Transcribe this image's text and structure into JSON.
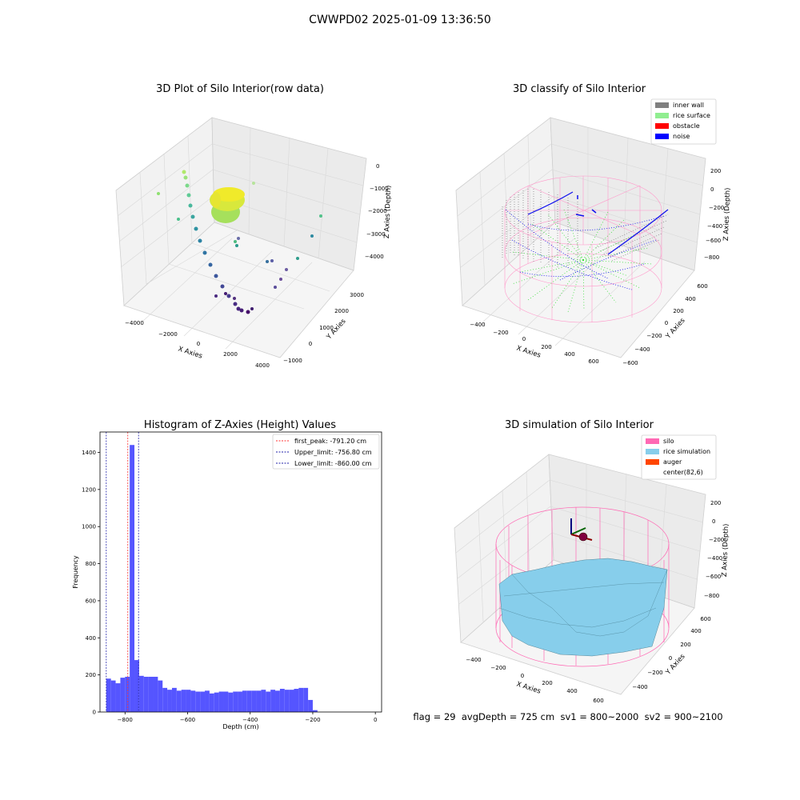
{
  "suptitle": "CWWPD02 2025-01-09 13:36:50",
  "footer_text": "flag = 29  avgDepth = 725 cm  sv1 = 800~2000  sv2 = 900~2100",
  "colors": {
    "hist_bar": "#5555ff",
    "first_peak": "#ff3333",
    "limit": "#2222aa",
    "inner_wall": "#808080",
    "rice_surface": "#90ee90",
    "obstacle": "#ff0000",
    "noise": "#0000ff",
    "silo": "#ff69b4",
    "rice_simulation": "#87ceeb",
    "auger": "#ff4500"
  },
  "chart_data": [
    {
      "type": "scatter",
      "title": "3D Plot of Silo Interior(row data)",
      "xlabel": "X Axies",
      "ylabel": "Y Axies",
      "zlabel": "Z Axies (Depth)",
      "xticks": [
        "−4000",
        "−2000",
        "0",
        "2000",
        "4000"
      ],
      "yticks": [
        "−1000",
        "0",
        "1000",
        "2000",
        "3000"
      ],
      "zticks": [
        "0",
        "−1000",
        "−2000",
        "−3000",
        "−4000"
      ],
      "grid": true
    },
    {
      "type": "scatter",
      "title": "3D classify of Silo Interior",
      "xlabel": "X Axies",
      "ylabel": "Y Axies",
      "zlabel": "Z Axies (Depth)",
      "xticks": [
        "−400",
        "−200",
        "0",
        "200",
        "400",
        "600"
      ],
      "yticks": [
        "−600",
        "−400",
        "−200",
        "0",
        "200",
        "400",
        "600"
      ],
      "zticks": [
        "200",
        "0",
        "−200",
        "−400",
        "−600",
        "−800"
      ],
      "legend": [
        "inner wall",
        "rice surface",
        "obstacle",
        "noise"
      ],
      "legend_loc": "top-right",
      "grid": true
    },
    {
      "type": "bar",
      "title": "Histogram of Z-Axies (Height) Values",
      "xlabel": "Depth (cm)",
      "ylabel": "Frequency",
      "xlim": [
        -880,
        20
      ],
      "ylim": [
        0,
        1510
      ],
      "xticks": [
        -800,
        -600,
        -400,
        -200,
        0
      ],
      "yticks": [
        0,
        200,
        400,
        600,
        800,
        1000,
        1200,
        1400
      ],
      "bin_width": 15,
      "bin_start": -860,
      "values": [
        180,
        170,
        155,
        185,
        190,
        1440,
        280,
        195,
        190,
        190,
        190,
        170,
        130,
        120,
        130,
        115,
        120,
        120,
        115,
        110,
        110,
        115,
        100,
        105,
        110,
        110,
        105,
        110,
        110,
        115,
        115,
        115,
        115,
        120,
        110,
        120,
        115,
        125,
        120,
        120,
        125,
        130,
        130,
        65,
        10
      ],
      "lines": [
        {
          "label": "first_peak: -791.20 cm",
          "x": -791.2,
          "color_key": "first_peak"
        },
        {
          "label": "Upper_limit: -756.80 cm",
          "x": -756.8,
          "color_key": "limit"
        },
        {
          "label": "Lower_limit: -860.00 cm",
          "x": -860.0,
          "color_key": "limit"
        }
      ],
      "legend_loc": "top-right",
      "grid": false
    },
    {
      "type": "area",
      "title": "3D simulation of Silo Interior",
      "xlabel": "X Axies",
      "ylabel": "Y Axies",
      "zlabel": "Z Axies (Depth)",
      "xticks": [
        "−400",
        "−200",
        "0",
        "200",
        "400",
        "600"
      ],
      "yticks": [
        "−400",
        "−200",
        "0",
        "200",
        "400",
        "600"
      ],
      "zticks": [
        "200",
        "0",
        "−200",
        "−400",
        "−600",
        "−800"
      ],
      "legend": [
        "silo",
        "rice simulation",
        "auger",
        "center(82,6)"
      ],
      "legend_loc": "top-right",
      "grid": true
    }
  ]
}
